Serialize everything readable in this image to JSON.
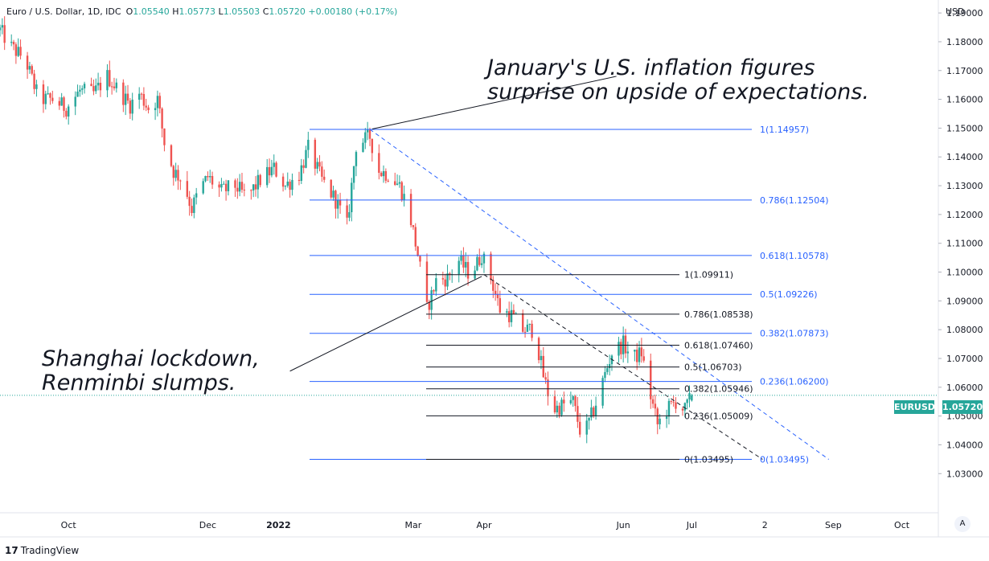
{
  "header": {
    "symbol": "Euro / U.S. Dollar, 1D, IDC",
    "o_label": "O",
    "o": "1.05540",
    "h_label": "H",
    "h": "1.05773",
    "l_label": "L",
    "l": "1.05503",
    "c_label": "C",
    "c": "1.05720",
    "change": "+0.00180 (+0.17%)"
  },
  "currency": "USD",
  "price_tag": {
    "name": "EURUSD",
    "value": "1.05720"
  },
  "annotations": {
    "top_line1": "January's U.S. inflation figures",
    "top_line2": "surprise on upside of expectations.",
    "bottom_line1": "Shanghai lockdown,",
    "bottom_line2": "Renminbi slumps."
  },
  "branding": {
    "logo": "17",
    "name": "TradingView"
  },
  "scale_button": "A",
  "colors": {
    "up": "#26a69a",
    "down": "#ef5350",
    "fib_blue": "#2962ff",
    "fib_black": "#131722",
    "tag": "#26a69a"
  },
  "chart_data": {
    "type": "candlestick",
    "title": "Euro / U.S. Dollar, 1D, IDC",
    "y_ticks": [
      "1.03000",
      "1.04000",
      "1.05000",
      "1.06000",
      "1.07000",
      "1.08000",
      "1.09000",
      "1.10000",
      "1.11000",
      "1.12000",
      "1.13000",
      "1.14000",
      "1.15000",
      "1.16000",
      "1.17000",
      "1.18000",
      "1.19000"
    ],
    "ylim": [
      1.025,
      1.19
    ],
    "x_ticks": [
      {
        "label": "Oct",
        "date": "2021-10-01",
        "bold": false
      },
      {
        "label": "Dec",
        "date": "2021-12-01",
        "bold": false
      },
      {
        "label": "2022",
        "date": "2022-01-01",
        "bold": true
      },
      {
        "label": "Mar",
        "date": "2022-03-01",
        "bold": false
      },
      {
        "label": "Apr",
        "date": "2022-04-01",
        "bold": false
      },
      {
        "label": "Jun",
        "date": "2022-06-01",
        "bold": false
      },
      {
        "label": "Jul",
        "date": "2022-07-01",
        "bold": false
      },
      {
        "label": "2",
        "date": "2022-08-02",
        "bold": false
      },
      {
        "label": "Sep",
        "date": "2022-09-01",
        "bold": false
      },
      {
        "label": "Oct",
        "date": "2022-10-01",
        "bold": false
      }
    ],
    "x_range": [
      "2021-09-01",
      "2022-10-17"
    ],
    "trend_path": [
      [
        "2021-09-01",
        1.184
      ],
      [
        "2021-09-06",
        1.178
      ],
      [
        "2021-09-12",
        1.174
      ],
      [
        "2021-09-18",
        1.16
      ],
      [
        "2021-09-24",
        1.16
      ],
      [
        "2021-09-30",
        1.157
      ],
      [
        "2021-10-06",
        1.163
      ],
      [
        "2021-10-12",
        1.162
      ],
      [
        "2021-10-18",
        1.168
      ],
      [
        "2021-10-22",
        1.164
      ],
      [
        "2021-10-28",
        1.158
      ],
      [
        "2021-11-01",
        1.162
      ],
      [
        "2021-11-05",
        1.157
      ],
      [
        "2021-11-09",
        1.16
      ],
      [
        "2021-11-12",
        1.145
      ],
      [
        "2021-11-16",
        1.135
      ],
      [
        "2021-11-20",
        1.132
      ],
      [
        "2021-11-24",
        1.122
      ],
      [
        "2021-11-27",
        1.128
      ],
      [
        "2021-12-01",
        1.133
      ],
      [
        "2021-12-07",
        1.128
      ],
      [
        "2021-12-13",
        1.13
      ],
      [
        "2021-12-18",
        1.126
      ],
      [
        "2021-12-24",
        1.132
      ],
      [
        "2021-12-30",
        1.136
      ],
      [
        "2022-01-04",
        1.13
      ],
      [
        "2022-01-10",
        1.134
      ],
      [
        "2022-01-14",
        1.143
      ],
      [
        "2022-01-20",
        1.132
      ],
      [
        "2022-01-26",
        1.125
      ],
      [
        "2022-01-31",
        1.116
      ],
      [
        "2022-02-04",
        1.144
      ],
      [
        "2022-02-10",
        1.147
      ],
      [
        "2022-02-14",
        1.135
      ],
      [
        "2022-02-18",
        1.134
      ],
      [
        "2022-02-23",
        1.13
      ],
      [
        "2022-02-27",
        1.122
      ],
      [
        "2022-03-03",
        1.106
      ],
      [
        "2022-03-07",
        1.087
      ],
      [
        "2022-03-11",
        1.097
      ],
      [
        "2022-03-16",
        1.098
      ],
      [
        "2022-03-21",
        1.104
      ],
      [
        "2022-03-26",
        1.099
      ],
      [
        "2022-03-31",
        1.106
      ],
      [
        "2022-04-04",
        1.098
      ],
      [
        "2022-04-08",
        1.087
      ],
      [
        "2022-04-13",
        1.085
      ],
      [
        "2022-04-18",
        1.08
      ],
      [
        "2022-04-23",
        1.08
      ],
      [
        "2022-04-27",
        1.064
      ],
      [
        "2022-05-01",
        1.052
      ],
      [
        "2022-05-06",
        1.054
      ],
      [
        "2022-05-10",
        1.055
      ],
      [
        "2022-05-14",
        1.042
      ],
      [
        "2022-05-19",
        1.052
      ],
      [
        "2022-05-23",
        1.062
      ],
      [
        "2022-05-27",
        1.072
      ],
      [
        "2022-06-01",
        1.075
      ],
      [
        "2022-06-05",
        1.07
      ],
      [
        "2022-06-09",
        1.072
      ],
      [
        "2022-06-12",
        1.06
      ],
      [
        "2022-06-16",
        1.047
      ],
      [
        "2022-06-20",
        1.052
      ],
      [
        "2022-06-24",
        1.055
      ],
      [
        "2022-06-28",
        1.052
      ],
      [
        "2022-07-01",
        1.057
      ]
    ],
    "last": {
      "date": "2022-07-01",
      "open": 1.0554,
      "high": 1.05773,
      "low": 1.05503,
      "close": 1.0572
    },
    "fib_large": {
      "color": "blue",
      "levels": [
        {
          "ratio": "1",
          "price": 1.14957,
          "label": "1(1.14957)"
        },
        {
          "ratio": "0.786",
          "price": 1.12504,
          "label": "0.786(1.12504)"
        },
        {
          "ratio": "0.618",
          "price": 1.10578,
          "label": "0.618(1.10578)"
        },
        {
          "ratio": "0.5",
          "price": 1.09226,
          "label": "0.5(1.09226)"
        },
        {
          "ratio": "0.382",
          "price": 1.07873,
          "label": "0.382(1.07873)"
        },
        {
          "ratio": "0.236",
          "price": 1.062,
          "label": "0.236(1.06200)"
        },
        {
          "ratio": "0",
          "price": 1.03495,
          "label": "0(1.03495)"
        }
      ],
      "from": [
        "2022-02-10",
        1.14957
      ],
      "to": [
        "2022-08-30",
        1.03495
      ]
    },
    "fib_small": {
      "color": "black",
      "levels": [
        {
          "ratio": "1",
          "price": 1.09911,
          "label": "1(1.09911)"
        },
        {
          "ratio": "0.786",
          "price": 1.08538,
          "label": "0.786(1.08538)"
        },
        {
          "ratio": "0.618",
          "price": 1.0746,
          "label": "0.618(1.07460)"
        },
        {
          "ratio": "0.5",
          "price": 1.06703,
          "label": "0.5(1.06703)"
        },
        {
          "ratio": "0.382",
          "price": 1.05946,
          "label": "0.382(1.05946)"
        },
        {
          "ratio": "0.236",
          "price": 1.05009,
          "label": "0.236(1.05009)"
        },
        {
          "ratio": "0",
          "price": 1.03495,
          "label": "0(1.03495)"
        }
      ],
      "from": [
        "2022-04-01",
        1.09911
      ],
      "to": [
        "2022-08-01",
        1.03495
      ]
    },
    "callouts": [
      {
        "from": [
          "2022-02-11",
          1.1497
        ],
        "to": [
          "2022-05-29",
          1.168
        ]
      },
      {
        "from": [
          "2022-03-31",
          1.0985
        ],
        "to": [
          "2022-01-06",
          1.0656
        ]
      }
    ]
  }
}
